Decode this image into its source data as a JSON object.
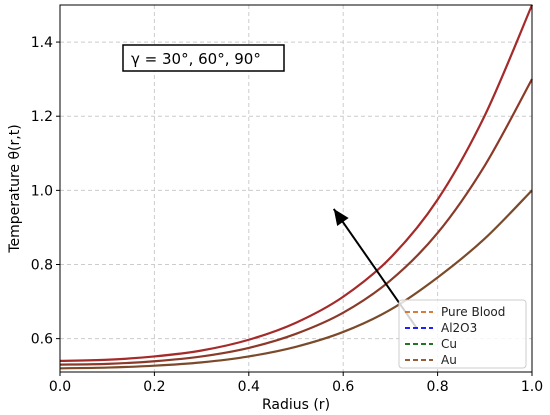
{
  "chart_data": {
    "type": "line",
    "xlabel": "Radius (r)",
    "ylabel": "Temperature θ(r,t)",
    "xlim": [
      0.0,
      1.0
    ],
    "ylim": [
      0.51,
      1.5
    ],
    "xticks": [
      0.0,
      0.2,
      0.4,
      0.6,
      0.8,
      1.0
    ],
    "yticks": [
      0.6,
      0.8,
      1.0,
      1.2,
      1.4
    ],
    "grid": true,
    "annotation": "γ = 30°, 60°, 90°",
    "legend": {
      "position": "lower-right",
      "entries": [
        {
          "label": "Pure Blood",
          "color": "#d2691e"
        },
        {
          "label": "Al2O3",
          "color": "#0000ff"
        },
        {
          "label": "Cu",
          "color": "#006400"
        },
        {
          "label": "Au",
          "color": "#8b4513"
        }
      ]
    },
    "arrow": {
      "from": [
        0.755,
        0.63
      ],
      "to": [
        0.58,
        0.95
      ]
    },
    "x": [
      0.0,
      0.1,
      0.2,
      0.3,
      0.4,
      0.5,
      0.6,
      0.7,
      0.8,
      0.9,
      1.0
    ],
    "series": [
      {
        "color": "#a52a2a",
        "values": [
          0.54,
          0.543,
          0.552,
          0.568,
          0.597,
          0.643,
          0.713,
          0.818,
          0.975,
          1.202,
          1.5
        ]
      },
      {
        "color": "#8b3a2a",
        "values": [
          0.53,
          0.532,
          0.539,
          0.552,
          0.575,
          0.613,
          0.67,
          0.757,
          0.885,
          1.067,
          1.3
        ]
      },
      {
        "color": "#7b4a2a",
        "values": [
          0.52,
          0.522,
          0.527,
          0.536,
          0.552,
          0.578,
          0.618,
          0.678,
          0.765,
          0.87,
          1.0
        ]
      }
    ]
  }
}
